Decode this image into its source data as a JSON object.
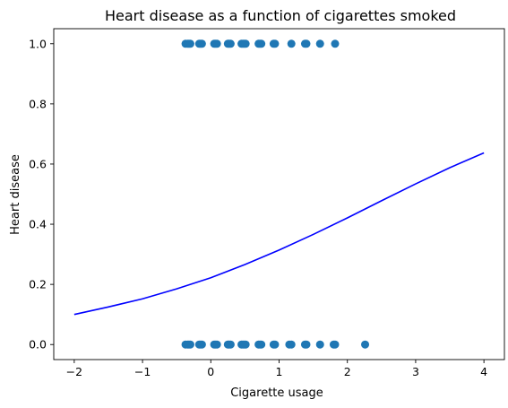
{
  "chart_data": {
    "type": "scatter",
    "title": "Heart disease as a function of cigarettes smoked",
    "xlabel": "Cigarette usage",
    "ylabel": "Heart disease",
    "xlim": [
      -2.3,
      4.3
    ],
    "ylim": [
      -0.05,
      1.05
    ],
    "xticks": [
      -2,
      -1,
      0,
      1,
      2,
      3,
      4
    ],
    "xtick_labels": [
      "−2",
      "−1",
      "0",
      "1",
      "2",
      "3",
      "4"
    ],
    "yticks": [
      0.0,
      0.2,
      0.4,
      0.6,
      0.8,
      1.0
    ],
    "ytick_labels": [
      "0.0",
      "0.2",
      "0.4",
      "0.6",
      "0.8",
      "1.0"
    ],
    "grid": false,
    "scatter_color": "#1f77b4",
    "curve_color": "#0000ff",
    "scatter": {
      "positives": {
        "y": 1,
        "x": [
          -0.37,
          -0.34,
          -0.32,
          -0.3,
          -0.17,
          -0.15,
          -0.13,
          0.05,
          0.07,
          0.09,
          0.25,
          0.27,
          0.29,
          0.45,
          0.47,
          0.49,
          0.51,
          0.7,
          0.72,
          0.74,
          0.92,
          0.94,
          1.18,
          1.38,
          1.4,
          1.6,
          1.82
        ]
      },
      "negatives": {
        "y": 0,
        "x": [
          -0.37,
          -0.34,
          -0.32,
          -0.3,
          -0.17,
          -0.15,
          -0.13,
          0.05,
          0.07,
          0.09,
          0.25,
          0.27,
          0.29,
          0.45,
          0.47,
          0.49,
          0.51,
          0.7,
          0.72,
          0.74,
          0.92,
          0.94,
          1.15,
          1.18,
          1.38,
          1.4,
          1.6,
          1.8,
          1.82,
          2.26
        ]
      }
    },
    "curve": {
      "x": [
        -2.0,
        -1.5,
        -1.0,
        -0.5,
        0.0,
        0.5,
        1.0,
        1.5,
        2.0,
        2.5,
        3.0,
        3.5,
        4.0
      ],
      "y": [
        0.1,
        0.125,
        0.152,
        0.185,
        0.222,
        0.266,
        0.314,
        0.366,
        0.421,
        0.478,
        0.534,
        0.588,
        0.637
      ]
    }
  }
}
